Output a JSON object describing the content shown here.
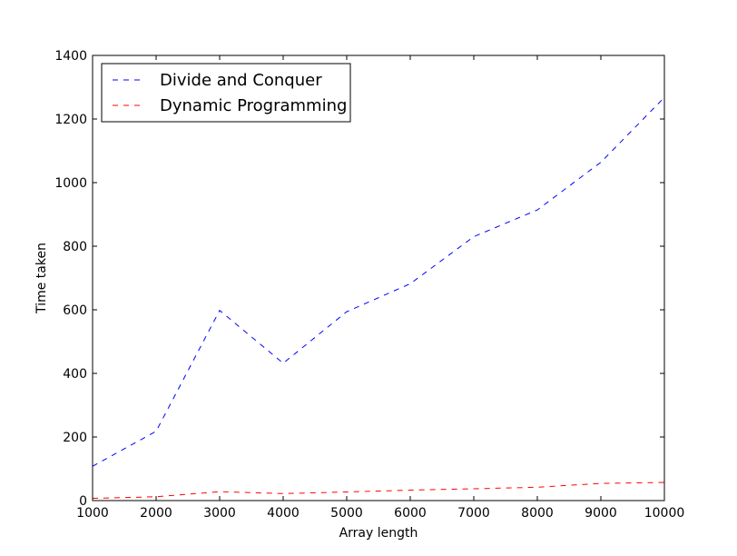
{
  "chart_data": {
    "type": "line",
    "title": "",
    "xlabel": "Array length",
    "ylabel": "Time taken",
    "xlim": [
      1000,
      10000
    ],
    "ylim": [
      0,
      1400
    ],
    "x_ticks": [
      1000,
      2000,
      3000,
      4000,
      5000,
      6000,
      7000,
      8000,
      9000,
      10000
    ],
    "y_ticks": [
      0,
      200,
      400,
      600,
      800,
      1000,
      1200,
      1400
    ],
    "x": [
      1000,
      2000,
      3000,
      4000,
      5000,
      6000,
      7000,
      8000,
      9000,
      10000
    ],
    "series": [
      {
        "name": "Divide and Conquer",
        "color": "#0000ff",
        "line_style": "dashed",
        "values": [
          108,
          218,
          598,
          432,
          594,
          682,
          830,
          914,
          1064,
          1268
        ]
      },
      {
        "name": "Dynamic Programming",
        "color": "#ff0000",
        "line_style": "dashed",
        "values": [
          7,
          12,
          28,
          22,
          27,
          33,
          37,
          42,
          54,
          57
        ]
      }
    ],
    "legend_position": "top-left",
    "grid": false
  }
}
